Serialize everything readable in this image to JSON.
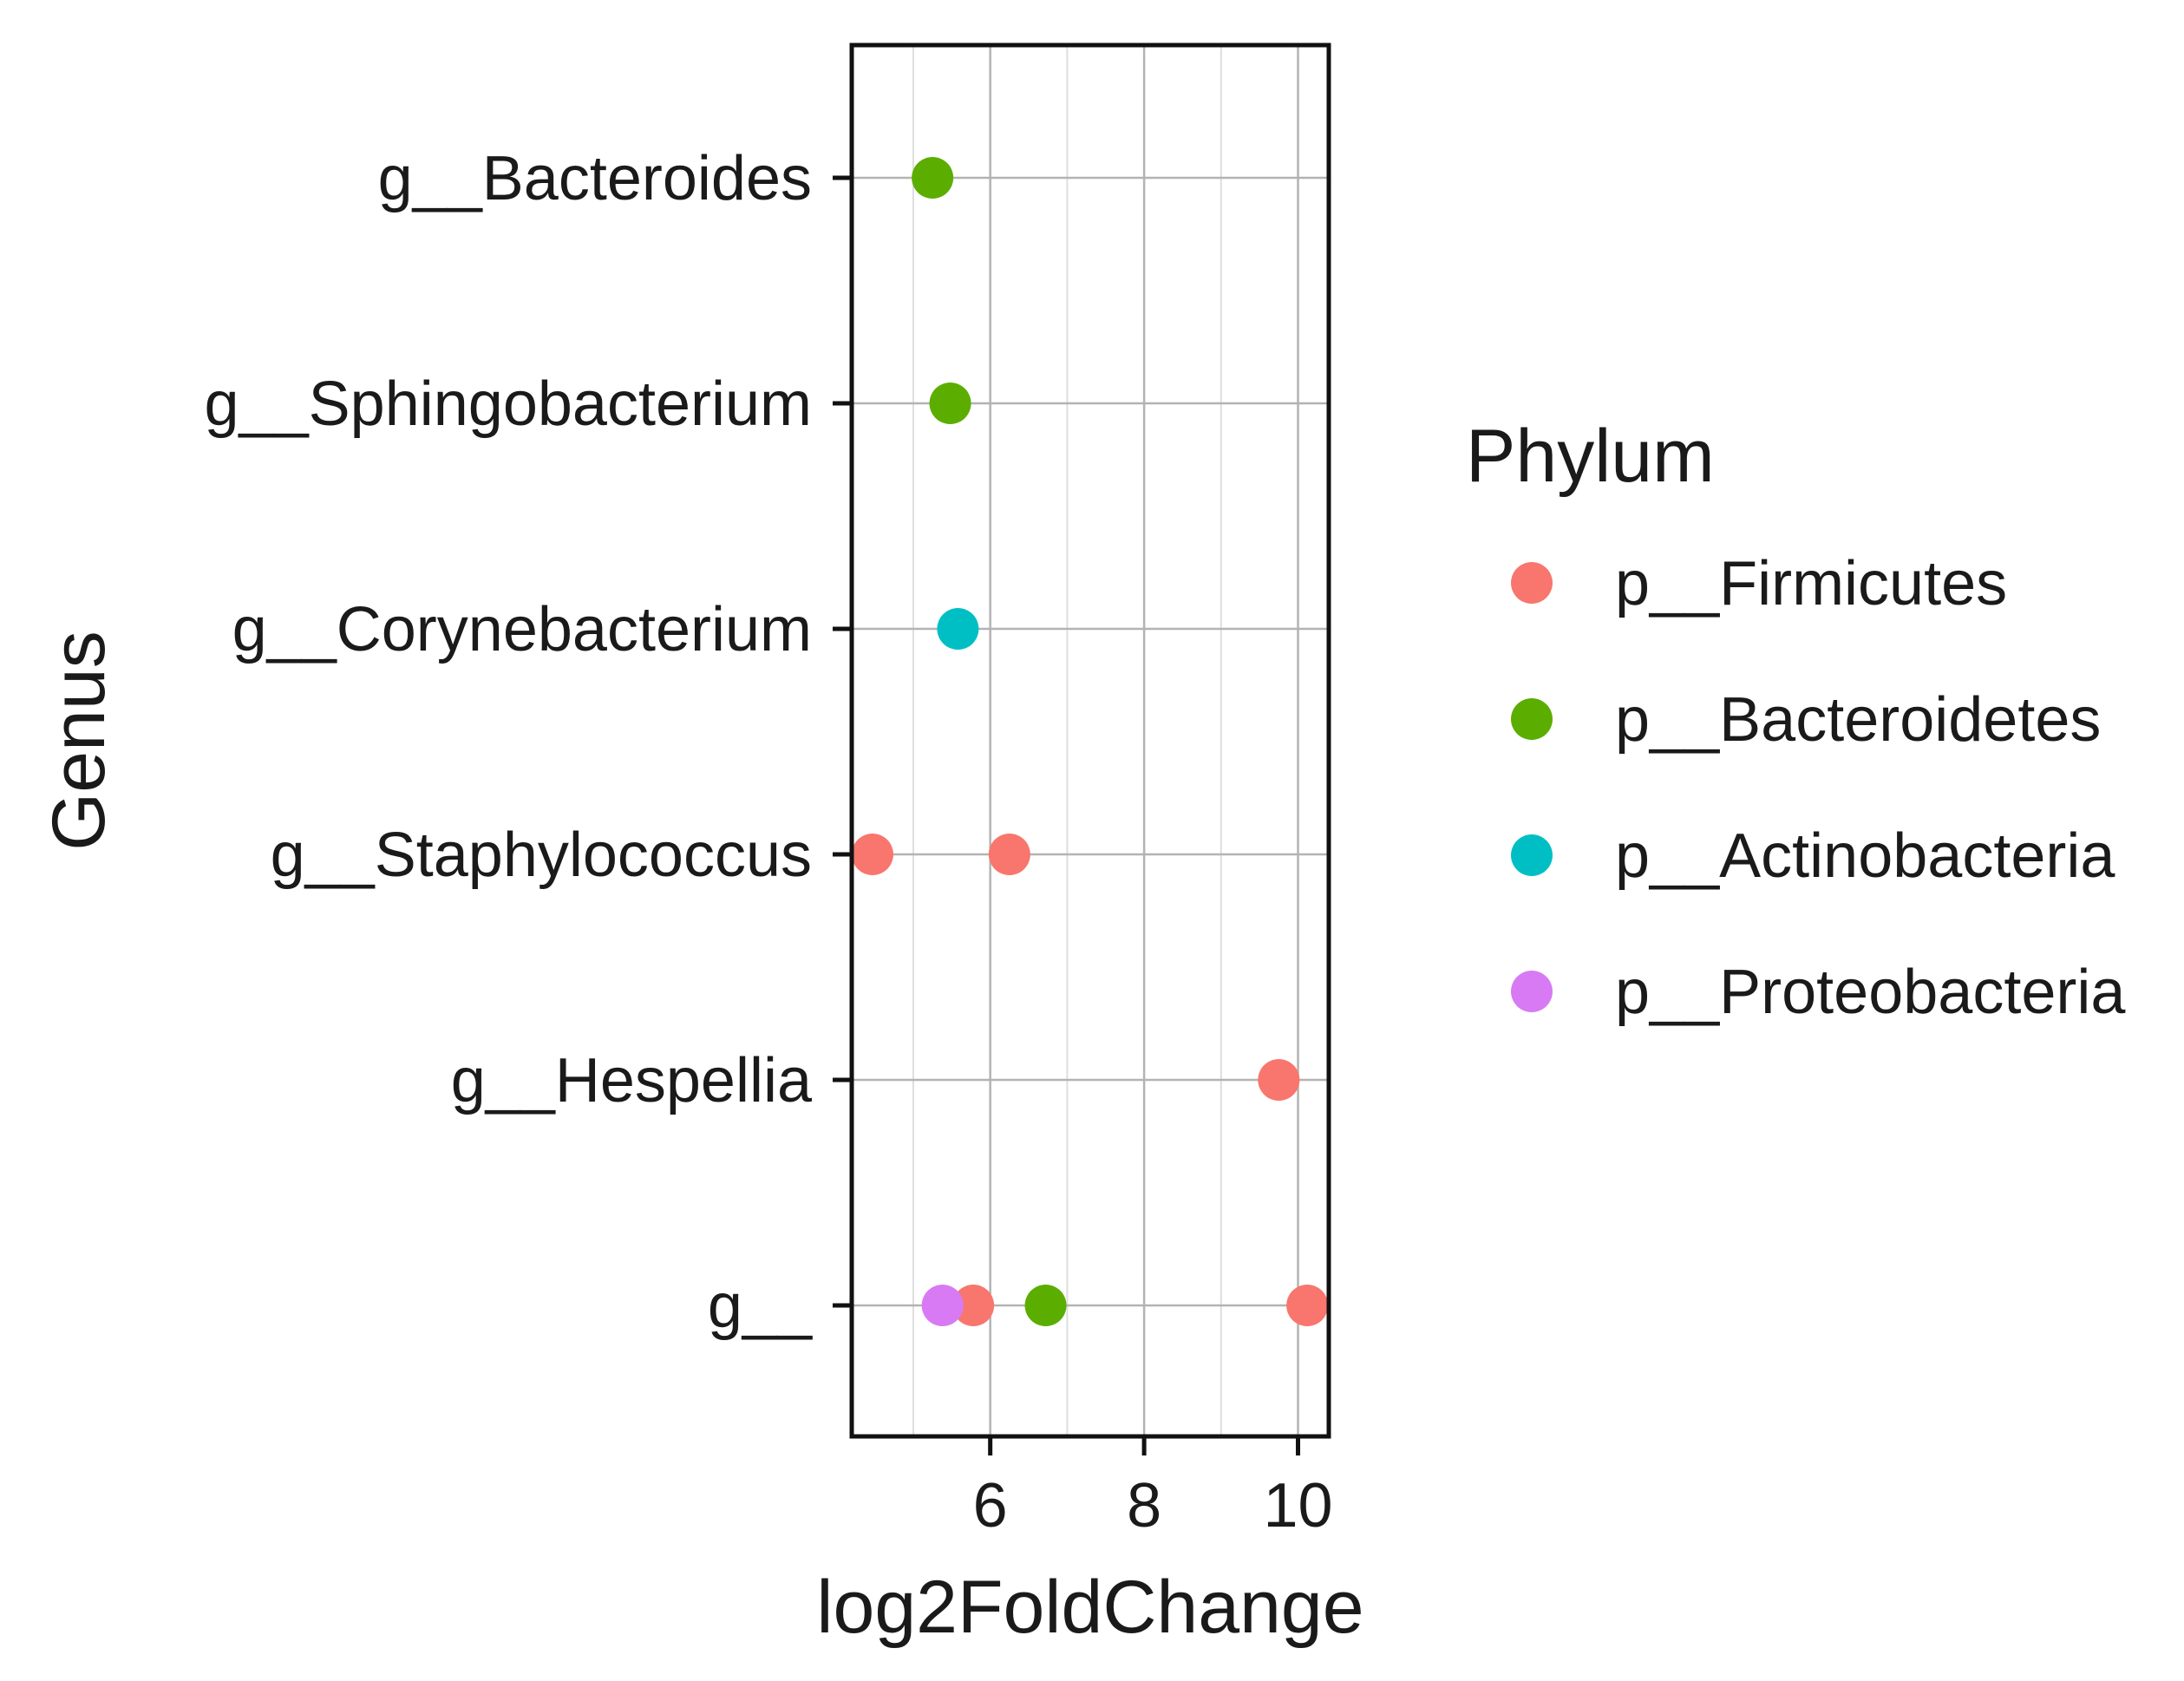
{
  "chart_data": {
    "type": "scatter",
    "title": "",
    "xlabel": "log2FoldChange",
    "ylabel": "Genus",
    "xlim": [
      4.2,
      10.4
    ],
    "x_ticks": [
      6,
      8,
      10
    ],
    "x_minor_ticks": [
      5,
      7,
      9
    ],
    "categories": [
      "g__Bacteroides",
      "g__Sphingobacterium",
      "g__Corynebacterium",
      "g__Staphylococcus",
      "g__Hespellia",
      "g__"
    ],
    "grid": true,
    "legend": {
      "title": "Phylum",
      "position": "right",
      "entries": [
        {
          "name": "p__Firmicutes",
          "color": "#F8766D"
        },
        {
          "name": "p__Bacteroidetes",
          "color": "#5BAE00"
        },
        {
          "name": "p__Actinobacteria",
          "color": "#00BFC4"
        },
        {
          "name": "p__Proteobacteria",
          "color": "#D87AF4"
        }
      ]
    },
    "points": [
      {
        "genus": "g__Bacteroides",
        "x": 5.25,
        "phylum": "p__Bacteroidetes"
      },
      {
        "genus": "g__Sphingobacterium",
        "x": 5.48,
        "phylum": "p__Bacteroidetes"
      },
      {
        "genus": "g__Corynebacterium",
        "x": 5.58,
        "phylum": "p__Actinobacteria"
      },
      {
        "genus": "g__Staphylococcus",
        "x": 4.47,
        "phylum": "p__Firmicutes"
      },
      {
        "genus": "g__Staphylococcus",
        "x": 6.25,
        "phylum": "p__Firmicutes"
      },
      {
        "genus": "g__Hespellia",
        "x": 9.75,
        "phylum": "p__Firmicutes"
      },
      {
        "genus": "g__",
        "x": 5.78,
        "phylum": "p__Firmicutes"
      },
      {
        "genus": "g__",
        "x": 6.72,
        "phylum": "p__Bacteroidetes"
      },
      {
        "genus": "g__",
        "x": 10.12,
        "phylum": "p__Firmicutes"
      },
      {
        "genus": "g__",
        "x": 5.38,
        "phylum": "p__Proteobacteria"
      }
    ]
  }
}
